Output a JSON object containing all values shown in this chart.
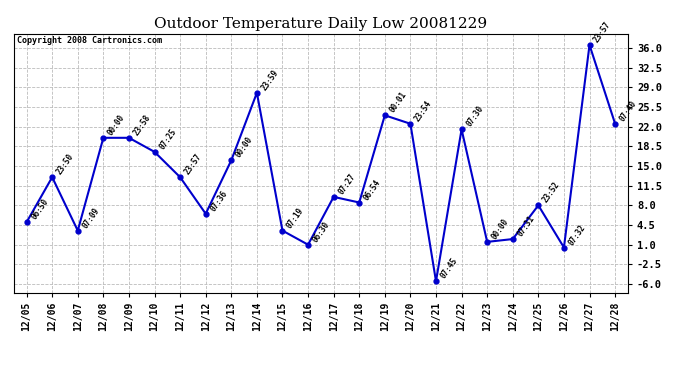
{
  "title": "Outdoor Temperature Daily Low 20081229",
  "copyright": "Copyright 2008 Cartronics.com",
  "x_labels": [
    "12/05",
    "12/06",
    "12/07",
    "12/08",
    "12/09",
    "12/10",
    "12/11",
    "12/12",
    "12/13",
    "12/14",
    "12/15",
    "12/16",
    "12/17",
    "12/18",
    "12/19",
    "12/20",
    "12/21",
    "12/22",
    "12/23",
    "12/24",
    "12/25",
    "12/26",
    "12/27",
    "12/28"
  ],
  "y_values": [
    5.0,
    13.0,
    3.5,
    20.0,
    20.0,
    17.5,
    13.0,
    6.5,
    16.0,
    28.0,
    3.5,
    1.0,
    9.5,
    8.5,
    24.0,
    22.5,
    -5.5,
    21.5,
    1.5,
    2.0,
    8.0,
    0.5,
    36.5,
    22.5
  ],
  "point_labels": [
    "06:50",
    "23:50",
    "07:09",
    "00:00",
    "23:58",
    "07:25",
    "23:57",
    "07:36",
    "00:00",
    "23:59",
    "07:19",
    "06:30",
    "07:27",
    "06:54",
    "00:01",
    "23:54",
    "07:45",
    "07:30",
    "00:00",
    "07:31",
    "23:52",
    "07:32",
    "23:57",
    "07:40"
  ],
  "line_color": "#0000CC",
  "marker_color": "#0000CC",
  "background_color": "#ffffff",
  "grid_color": "#bbbbbb",
  "title_fontsize": 11,
  "ylim": [
    -7.5,
    38.5
  ],
  "yticks": [
    -6.0,
    -2.5,
    1.0,
    4.5,
    8.0,
    11.5,
    15.0,
    18.5,
    22.0,
    25.5,
    29.0,
    32.5,
    36.0
  ]
}
